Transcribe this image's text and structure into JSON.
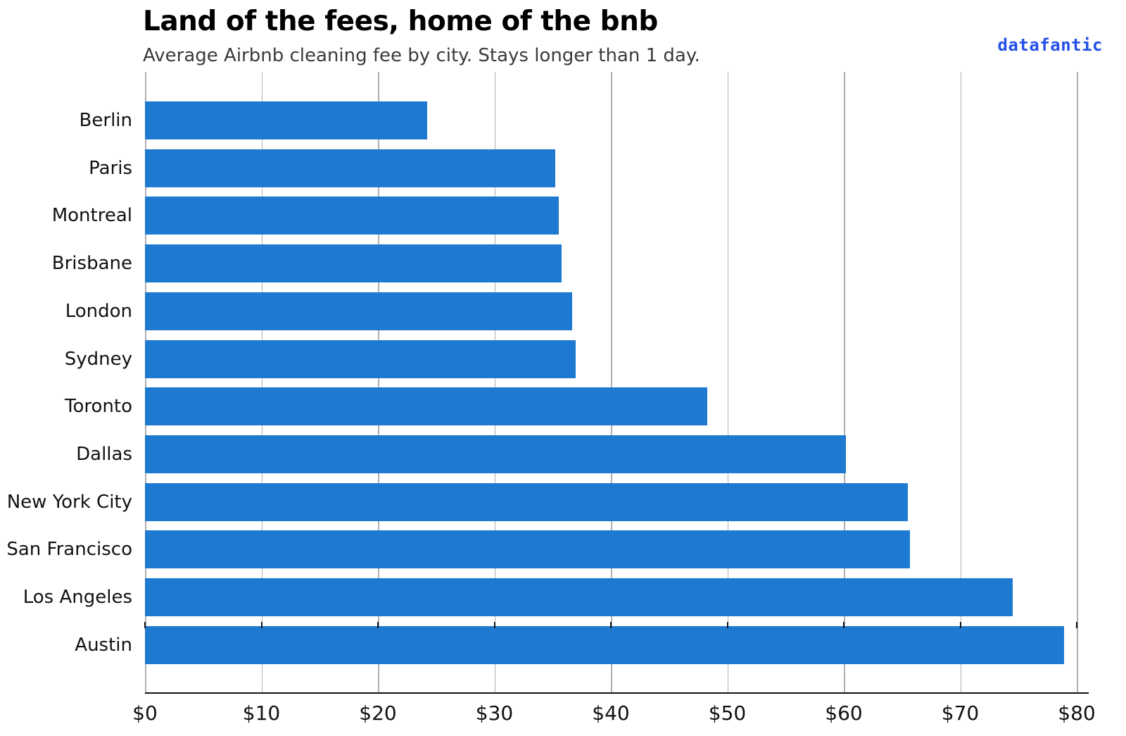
{
  "header": {
    "title": "Land of the fees, home of the bnb",
    "subtitle": "Average Airbnb cleaning fee by city. Stays longer than 1 day.",
    "brand": "datafantic"
  },
  "colors": {
    "bar": "#1e79d0",
    "brand": "#2450e8",
    "gridline": "#b0b0b0",
    "axis": "#141414"
  },
  "chart_data": {
    "type": "bar",
    "orientation": "horizontal",
    "title": "Land of the fees, home of the bnb",
    "subtitle": "Average Airbnb cleaning fee by city. Stays longer than 1 day.",
    "categories": [
      "Berlin",
      "Paris",
      "Montreal",
      "Brisbane",
      "London",
      "Sydney",
      "Toronto",
      "Dallas",
      "New York City",
      "San Francisco",
      "Los Angeles",
      "Austin"
    ],
    "values": [
      24.2,
      35.2,
      35.5,
      35.8,
      36.7,
      37.0,
      48.3,
      60.2,
      65.5,
      65.7,
      74.5,
      78.9
    ],
    "value_unit": "USD",
    "xlabel": "",
    "ylabel": "",
    "xlim": [
      0,
      80
    ],
    "x_tick_labels": [
      "$0",
      "$10",
      "$20",
      "$30",
      "$40",
      "$50",
      "$60",
      "$70",
      "$80"
    ],
    "x_tick_values": [
      0,
      10,
      20,
      30,
      40,
      50,
      60,
      70,
      80
    ],
    "grid": true,
    "legend": false
  }
}
